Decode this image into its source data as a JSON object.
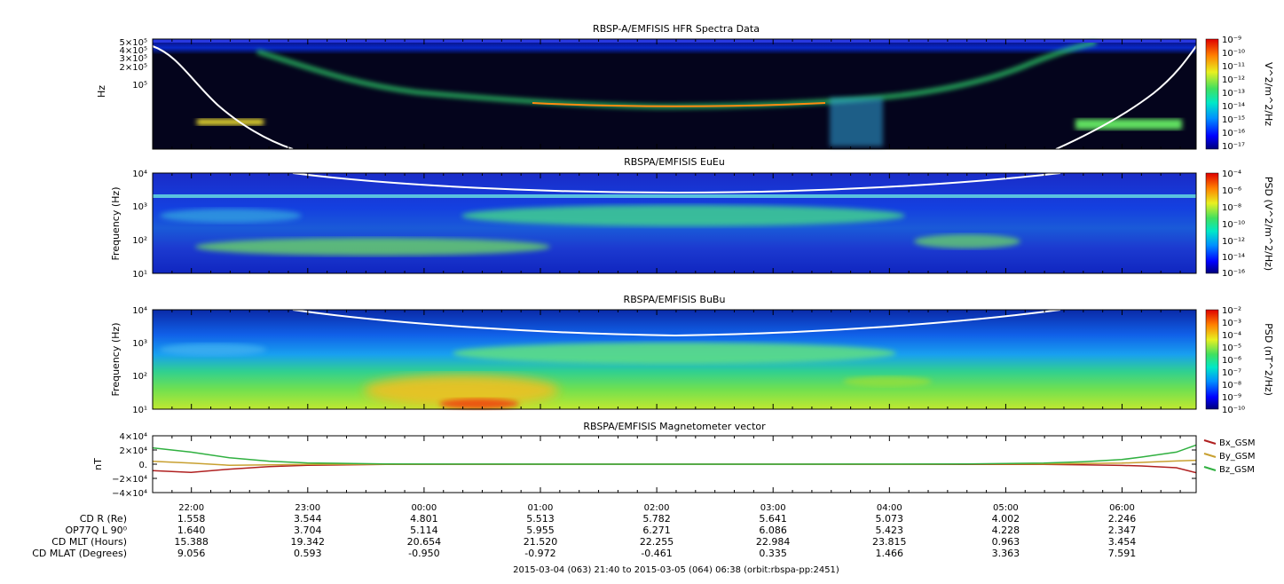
{
  "footer": "2015-03-04 (063) 21:40 to 2015-03-05 (064) 06:38 (orbit:rbspa-pp:2451)",
  "colors": {
    "spec_bg_dark": "#05051a",
    "spec_bg_blue": "#0a1ec8",
    "spec_green": "#3fd07a",
    "spec_yellow": "#f5e020",
    "spec_red": "#e81a0a",
    "bx": "#b02020",
    "by": "#c8a030",
    "bz": "#30b040"
  },
  "chart_data": [
    {
      "type": "heatmap",
      "title": "RBSP-A/EMFISIS  HFR Spectra Data",
      "ylabel": "Hz",
      "y_scale": "log",
      "ytick_labels": [
        "5×10⁵",
        "4×10⁵",
        "3×10⁵",
        "2×10⁵",
        "10⁵"
      ],
      "colorbar_label": "V^2/m^2/Hz",
      "colorbar_ticks": [
        "10⁻⁹",
        "10⁻¹⁰",
        "10⁻¹¹",
        "10⁻¹²",
        "10⁻¹³",
        "10⁻¹⁴",
        "10⁻¹⁵",
        "10⁻¹⁶",
        "10⁻¹⁷"
      ],
      "overlay": "white curve (plasma frequency)"
    },
    {
      "type": "heatmap",
      "title": "RBSPA/EMFISIS  EuEu",
      "ylabel": "Frequency (Hz)",
      "y_scale": "log",
      "ylim": [
        10,
        10000
      ],
      "ytick_labels": [
        "10⁴",
        "10³",
        "10²",
        "10¹"
      ],
      "colorbar_label": "PSD (V^2/m^2/Hz)",
      "colorbar_ticks": [
        "10⁻⁴",
        "10⁻⁶",
        "10⁻⁸",
        "10⁻¹⁰",
        "10⁻¹²",
        "10⁻¹⁴",
        "10⁻¹⁶"
      ],
      "overlay": "white curve (cyclotron frequency)"
    },
    {
      "type": "heatmap",
      "title": "RBSPA/EMFISIS  BuBu",
      "ylabel": "Frequency (Hz)",
      "y_scale": "log",
      "ylim": [
        10,
        10000
      ],
      "ytick_labels": [
        "10⁴",
        "10³",
        "10²",
        "10¹"
      ],
      "colorbar_label": "PSD (nT^2/Hz)",
      "colorbar_ticks": [
        "10⁻²",
        "10⁻³",
        "10⁻⁴",
        "10⁻⁵",
        "10⁻⁶",
        "10⁻⁷",
        "10⁻⁸",
        "10⁻⁹",
        "10⁻¹⁰"
      ],
      "overlay": "white curve (cyclotron frequency)"
    },
    {
      "type": "line",
      "title": "RBSPA/EMFISIS  Magnetometer vector",
      "ylabel": "nT",
      "ylim": [
        -40000,
        40000
      ],
      "ytick_labels": [
        "4×10⁴",
        "2×10⁴",
        "0.",
        "−2×10⁴",
        "−4×10⁴"
      ],
      "legend": "right",
      "x_hours": [
        0,
        0.33,
        0.66,
        1.0,
        1.33,
        2.0,
        3.0,
        4.0,
        5.0,
        6.0,
        7.0,
        7.66,
        8.0,
        8.33,
        8.5,
        8.8,
        8.97
      ],
      "series": [
        {
          "name": "Bx_GSM",
          "values": [
            -9000,
            -11500,
            -7000,
            -3500,
            -1500,
            -400,
            -100,
            0,
            0,
            -100,
            -200,
            -400,
            -900,
            -1800,
            -2500,
            -5000,
            -12000
          ]
        },
        {
          "name": "By_GSM",
          "values": [
            4000,
            1500,
            -1500,
            -1000,
            -300,
            -100,
            0,
            0,
            0,
            0,
            100,
            400,
            900,
            1500,
            2500,
            4500,
            5500
          ]
        },
        {
          "name": "Bz_GSM",
          "values": [
            23000,
            17000,
            9000,
            4200,
            1800,
            400,
            100,
            0,
            0,
            100,
            300,
            1500,
            3500,
            6500,
            10000,
            17000,
            27000
          ]
        }
      ]
    }
  ],
  "xaxis": {
    "labels": [
      "22:00",
      "23:00",
      "00:00",
      "01:00",
      "02:00",
      "03:00",
      "04:00",
      "05:00",
      "06:00"
    ]
  },
  "ephemeris": {
    "labels": [
      "CD R (Re)",
      "OP77Q L 90⁰",
      "CD MLT (Hours)",
      "CD MLAT (Degrees)"
    ],
    "rows": [
      [
        "1.558",
        "3.544",
        "4.801",
        "5.513",
        "5.782",
        "5.641",
        "5.073",
        "4.002",
        "2.246"
      ],
      [
        "1.640",
        "3.704",
        "5.114",
        "5.955",
        "6.271",
        "6.086",
        "5.423",
        "4.228",
        "2.347"
      ],
      [
        "15.388",
        "19.342",
        "20.654",
        "21.520",
        "22.255",
        "22.984",
        "23.815",
        "0.963",
        "3.454"
      ],
      [
        "9.056",
        "0.593",
        "-0.950",
        "-0.972",
        "-0.461",
        "0.335",
        "1.466",
        "3.363",
        "7.591"
      ]
    ]
  }
}
